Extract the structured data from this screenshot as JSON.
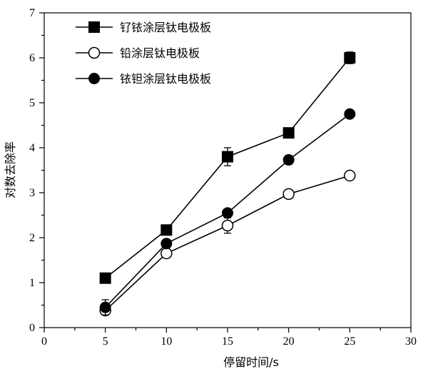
{
  "chart_data": {
    "type": "line",
    "xlabel": "停留时间/s",
    "ylabel": "对数去除率",
    "xlim": [
      0,
      30
    ],
    "ylim": [
      0,
      7
    ],
    "xticks": [
      0,
      5,
      10,
      15,
      20,
      25,
      30
    ],
    "yticks": [
      0,
      1,
      2,
      3,
      4,
      5,
      6,
      7
    ],
    "x": [
      5,
      10,
      15,
      20,
      25
    ],
    "grid": false,
    "legend_position": "top-left",
    "series": [
      {
        "name": "钌铱涂层钛电极板",
        "marker": "filled-square",
        "values": [
          1.1,
          2.17,
          3.8,
          4.33,
          6.0
        ],
        "error": [
          0.1,
          0.07,
          0.2,
          0.05,
          0.13
        ]
      },
      {
        "name": "铅涂层钛电极板",
        "marker": "open-circle",
        "values": [
          0.38,
          1.65,
          2.27,
          2.97,
          3.38
        ],
        "error": [
          0.07,
          0.05,
          0.17,
          0.08,
          0.05
        ]
      },
      {
        "name": "铱钽涂层钛电极板",
        "marker": "filled-circle",
        "values": [
          0.45,
          1.87,
          2.55,
          3.73,
          4.75
        ],
        "error": [
          0.17,
          0.05,
          0.08,
          0.1,
          0.05
        ]
      }
    ]
  }
}
